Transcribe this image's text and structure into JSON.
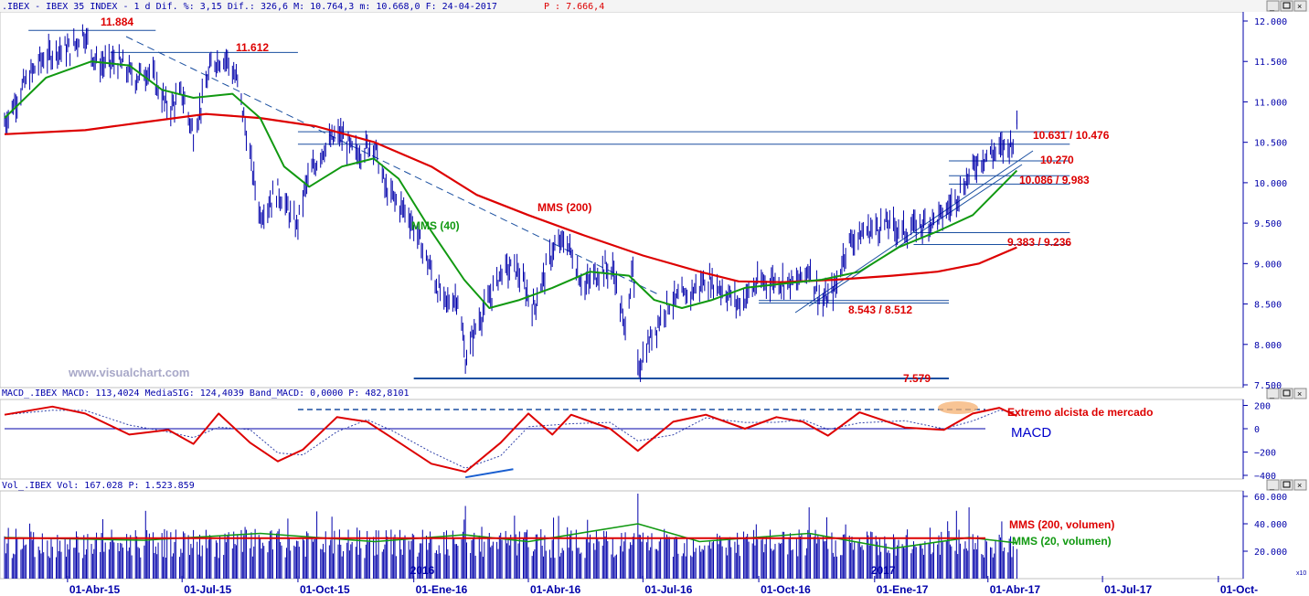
{
  "header": {
    "price_info": ".IBEX - IBEX 35 INDEX -  1 d Dif. %: 3,15 Dif.: 326,6 M: 10.764,3 m: 10.668,0 F: 24-04-2017",
    "price_extra": "P : 7.666,4"
  },
  "macd_header": "MACD_.IBEX MACD: 113,4024 MediaSIG: 124,4039 Band_MACD: 0,0000 P: 482,8101",
  "vol_header": "Vol_.IBEX Vol: 167.028 P: 1.523.859",
  "watermark": "www.visualchart.com",
  "colors": {
    "bars": "#0000aa",
    "mm200": "#dd0000",
    "mm40": "#119911",
    "lines": "#1a4fa0",
    "label_red": "#dd0000",
    "axis": "#0000aa"
  },
  "chart_data": [
    {
      "type": "line",
      "panel": "price",
      "title": "",
      "y_ticks": [
        "12.000",
        "11.500",
        "11.000",
        "10.500",
        "10.000",
        "9.500",
        "9.000",
        "8.500",
        "8.000",
        "7.500"
      ],
      "y_tick_values": [
        12000,
        11500,
        11000,
        10500,
        10000,
        9500,
        9000,
        8500,
        8000,
        7500
      ],
      "ylim": [
        7500,
        12100
      ],
      "x_ticks": [
        "01-Abr-15",
        "01-Jul-15",
        "01-Oct-15",
        "01-Ene-16",
        "01-Abr-16",
        "01-Jul-16",
        "01-Oct-16",
        "01-Ene-17",
        "01-Abr-17",
        "01-Jul-17",
        "01-Oct-"
      ],
      "x_tick_dates": [
        "2015-04-01",
        "2015-07-01",
        "2015-10-01",
        "2016-01-01",
        "2016-04-01",
        "2016-07-01",
        "2016-10-01",
        "2017-01-01",
        "2017-04-01",
        "2017-07-01",
        "2017-10-01"
      ],
      "year_marks": [
        "2016",
        "2017"
      ],
      "x_start": "2015-02-10",
      "x_end": "2017-10-20",
      "series": [
        {
          "name": "IBEX 35",
          "kind": "close",
          "points": [
            [
              "2015-02-10",
              10750
            ],
            [
              "2015-02-25",
              11200
            ],
            [
              "2015-03-10",
              11500
            ],
            [
              "2015-03-25",
              11650
            ],
            [
              "2015-04-05",
              11650
            ],
            [
              "2015-04-13",
              11880
            ],
            [
              "2015-04-25",
              11450
            ],
            [
              "2015-05-10",
              11500
            ],
            [
              "2015-05-25",
              11300
            ],
            [
              "2015-06-05",
              11400
            ],
            [
              "2015-06-20",
              10900
            ],
            [
              "2015-07-01",
              11100
            ],
            [
              "2015-07-10",
              10600
            ],
            [
              "2015-07-25",
              11500
            ],
            [
              "2015-08-05",
              11550
            ],
            [
              "2015-08-15",
              11200
            ],
            [
              "2015-08-24",
              10300
            ],
            [
              "2015-09-01",
              9600
            ],
            [
              "2015-09-15",
              9900
            ],
            [
              "2015-09-30",
              9450
            ],
            [
              "2015-10-08",
              10000
            ],
            [
              "2015-10-20",
              10400
            ],
            [
              "2015-11-03",
              10600
            ],
            [
              "2015-11-15",
              10350
            ],
            [
              "2015-11-30",
              10500
            ],
            [
              "2015-12-10",
              9900
            ],
            [
              "2015-12-28",
              9600
            ],
            [
              "2016-01-10",
              9100
            ],
            [
              "2016-01-25",
              8500
            ],
            [
              "2016-02-05",
              8600
            ],
            [
              "2016-02-11",
              7800
            ],
            [
              "2016-02-20",
              8250
            ],
            [
              "2016-03-01",
              8550
            ],
            [
              "2016-03-10",
              8900
            ],
            [
              "2016-03-22",
              8950
            ],
            [
              "2016-04-05",
              8450
            ],
            [
              "2016-04-20",
              9150
            ],
            [
              "2016-05-01",
              9300
            ],
            [
              "2016-05-15",
              8700
            ],
            [
              "2016-05-30",
              8950
            ],
            [
              "2016-06-08",
              8900
            ],
            [
              "2016-06-16",
              8200
            ],
            [
              "2016-06-23",
              8900
            ],
            [
              "2016-06-27",
              7700
            ],
            [
              "2016-07-05",
              8000
            ],
            [
              "2016-07-20",
              8500
            ],
            [
              "2016-08-05",
              8600
            ],
            [
              "2016-08-20",
              8800
            ],
            [
              "2016-09-01",
              8700
            ],
            [
              "2016-09-15",
              8500
            ],
            [
              "2016-09-30",
              8750
            ],
            [
              "2016-10-15",
              8800
            ],
            [
              "2016-10-31",
              8750
            ],
            [
              "2016-11-10",
              8950
            ],
            [
              "2016-11-20",
              8500
            ],
            [
              "2016-12-01",
              8700
            ],
            [
              "2016-12-10",
              9250
            ],
            [
              "2016-12-25",
              9400
            ],
            [
              "2017-01-10",
              9500
            ],
            [
              "2017-01-25",
              9400
            ],
            [
              "2017-02-10",
              9500
            ],
            [
              "2017-02-25",
              9600
            ],
            [
              "2017-03-10",
              9900
            ],
            [
              "2017-03-25",
              10300
            ],
            [
              "2017-04-10",
              10400
            ],
            [
              "2017-04-20",
              10500
            ],
            [
              "2017-04-24",
              10700
            ]
          ]
        },
        {
          "name": "MMS (40)",
          "points": [
            [
              "2015-02-10",
              10800
            ],
            [
              "2015-03-15",
              11300
            ],
            [
              "2015-04-20",
              11500
            ],
            [
              "2015-05-20",
              11450
            ],
            [
              "2015-06-15",
              11150
            ],
            [
              "2015-07-10",
              11050
            ],
            [
              "2015-08-10",
              11100
            ],
            [
              "2015-09-01",
              10800
            ],
            [
              "2015-09-20",
              10200
            ],
            [
              "2015-10-10",
              9950
            ],
            [
              "2015-11-05",
              10200
            ],
            [
              "2015-11-30",
              10300
            ],
            [
              "2015-12-20",
              10050
            ],
            [
              "2016-01-15",
              9400
            ],
            [
              "2016-02-10",
              8800
            ],
            [
              "2016-03-01",
              8450
            ],
            [
              "2016-03-25",
              8550
            ],
            [
              "2016-04-20",
              8700
            ],
            [
              "2016-05-20",
              8900
            ],
            [
              "2016-06-20",
              8850
            ],
            [
              "2016-07-10",
              8550
            ],
            [
              "2016-08-01",
              8450
            ],
            [
              "2016-08-25",
              8550
            ],
            [
              "2016-09-20",
              8700
            ],
            [
              "2016-10-20",
              8750
            ],
            [
              "2016-11-20",
              8800
            ],
            [
              "2016-12-20",
              8900
            ],
            [
              "2017-01-20",
              9200
            ],
            [
              "2017-02-20",
              9400
            ],
            [
              "2017-03-20",
              9600
            ],
            [
              "2017-04-24",
              10150
            ]
          ]
        },
        {
          "name": "MMS (200)",
          "points": [
            [
              "2015-02-10",
              10600
            ],
            [
              "2015-04-15",
              10650
            ],
            [
              "2015-06-01",
              10750
            ],
            [
              "2015-07-20",
              10850
            ],
            [
              "2015-09-01",
              10800
            ],
            [
              "2015-10-15",
              10700
            ],
            [
              "2015-12-01",
              10500
            ],
            [
              "2016-01-15",
              10200
            ],
            [
              "2016-02-20",
              9850
            ],
            [
              "2016-04-01",
              9600
            ],
            [
              "2016-05-15",
              9350
            ],
            [
              "2016-07-01",
              9100
            ],
            [
              "2016-08-15",
              8900
            ],
            [
              "2016-09-15",
              8780
            ],
            [
              "2016-10-20",
              8770
            ],
            [
              "2016-12-01",
              8800
            ],
            [
              "2017-01-15",
              8850
            ],
            [
              "2017-02-20",
              8900
            ],
            [
              "2017-03-25",
              9000
            ],
            [
              "2017-04-24",
              9200
            ]
          ]
        }
      ],
      "annotations": [
        {
          "text": "11.884",
          "value": 11884,
          "from": "2015-03-01",
          "to": "2015-06-10"
        },
        {
          "text": "11.612",
          "value": 11612,
          "from": "2015-05-05",
          "to": "2015-10-01"
        },
        {
          "text": "10.631 / 10.476",
          "value": 10631,
          "value2": 10476,
          "from": "2015-10-01",
          "to": "2017-06-05"
        },
        {
          "text": "10.270",
          "value": 10270,
          "from": "2017-03-01",
          "to": "2017-06-05"
        },
        {
          "text": "10.086 / 9.983",
          "value": 10086,
          "value2": 9983,
          "from": "2017-03-01",
          "to": "2017-06-05"
        },
        {
          "text": "9.383 / 9.236",
          "value": 9383,
          "value2": 9236,
          "from": "2017-02-01",
          "to": "2017-06-05"
        },
        {
          "text": "8.543 / 8.512",
          "value": 8543,
          "value2": 8512,
          "from": "2016-10-01",
          "to": "2017-03-01"
        },
        {
          "text": "7.579",
          "value": 7579,
          "from": "2016-01-01",
          "to": "2017-03-01"
        },
        {
          "text": "MMS (200)",
          "series": "MMS (200)"
        },
        {
          "text": "MMS (40)",
          "series": "MMS (40)"
        }
      ]
    },
    {
      "type": "line",
      "panel": "macd",
      "title": "MACD",
      "y_ticks": [
        "200",
        "0",
        "−200",
        "−400"
      ],
      "y_tick_values": [
        200,
        0,
        -200,
        -400
      ],
      "ylim": [
        -420,
        230
      ],
      "series": [
        {
          "name": "MACD",
          "points": [
            [
              "2015-02-10",
              120
            ],
            [
              "2015-03-20",
              190
            ],
            [
              "2015-04-15",
              130
            ],
            [
              "2015-05-20",
              -50
            ],
            [
              "2015-06-20",
              -10
            ],
            [
              "2015-07-10",
              -130
            ],
            [
              "2015-07-30",
              130
            ],
            [
              "2015-08-24",
              -120
            ],
            [
              "2015-09-15",
              -280
            ],
            [
              "2015-10-05",
              -180
            ],
            [
              "2015-11-01",
              100
            ],
            [
              "2015-11-25",
              60
            ],
            [
              "2015-12-15",
              -80
            ],
            [
              "2016-01-15",
              -300
            ],
            [
              "2016-02-11",
              -370
            ],
            [
              "2016-03-10",
              -120
            ],
            [
              "2016-04-01",
              130
            ],
            [
              "2016-04-20",
              -50
            ],
            [
              "2016-05-05",
              120
            ],
            [
              "2016-06-05",
              0
            ],
            [
              "2016-06-27",
              -190
            ],
            [
              "2016-07-25",
              60
            ],
            [
              "2016-08-20",
              120
            ],
            [
              "2016-09-20",
              0
            ],
            [
              "2016-10-15",
              100
            ],
            [
              "2016-11-05",
              60
            ],
            [
              "2016-11-25",
              -60
            ],
            [
              "2016-12-20",
              140
            ],
            [
              "2017-01-25",
              10
            ],
            [
              "2017-02-25",
              -10
            ],
            [
              "2017-03-20",
              130
            ],
            [
              "2017-04-10",
              180
            ],
            [
              "2017-04-24",
              110
            ]
          ]
        }
      ],
      "divergence_line": {
        "from": [
          "2016-02-11",
          -370
        ],
        "to": [
          "2016-03-20",
          -300
        ]
      },
      "annotations": [
        {
          "text": "Extremo alcista de mercado"
        }
      ]
    },
    {
      "type": "bar",
      "panel": "volume",
      "y_ticks": [
        "60.000",
        "40.000",
        "20.000"
      ],
      "y_tick_values": [
        60000,
        40000,
        20000
      ],
      "ylim": [
        0,
        64000
      ],
      "unit": "x10",
      "series": [
        {
          "name": "Volumen",
          "typical_range": [
            15000,
            40000
          ],
          "peaks": [
            [
              "2016-06-27",
              62000
            ],
            [
              "2016-02-11",
              53000
            ],
            [
              "2016-11-10",
              52000
            ],
            [
              "2017-03-17",
              52000
            ]
          ]
        },
        {
          "name": "MMS (200, volumen)",
          "value": 29500
        },
        {
          "name": "MMS (20, volumen)",
          "points": [
            [
              "2015-02-10",
              30000
            ],
            [
              "2015-06-01",
              28000
            ],
            [
              "2015-09-01",
              33000
            ],
            [
              "2015-12-01",
              27000
            ],
            [
              "2016-02-10",
              32000
            ],
            [
              "2016-04-01",
              27000
            ],
            [
              "2016-06-27",
              40000
            ],
            [
              "2016-08-15",
              27000
            ],
            [
              "2016-11-10",
              33000
            ],
            [
              "2017-01-15",
              22000
            ],
            [
              "2017-03-17",
              30000
            ],
            [
              "2017-04-24",
              26000
            ]
          ]
        }
      ]
    }
  ]
}
